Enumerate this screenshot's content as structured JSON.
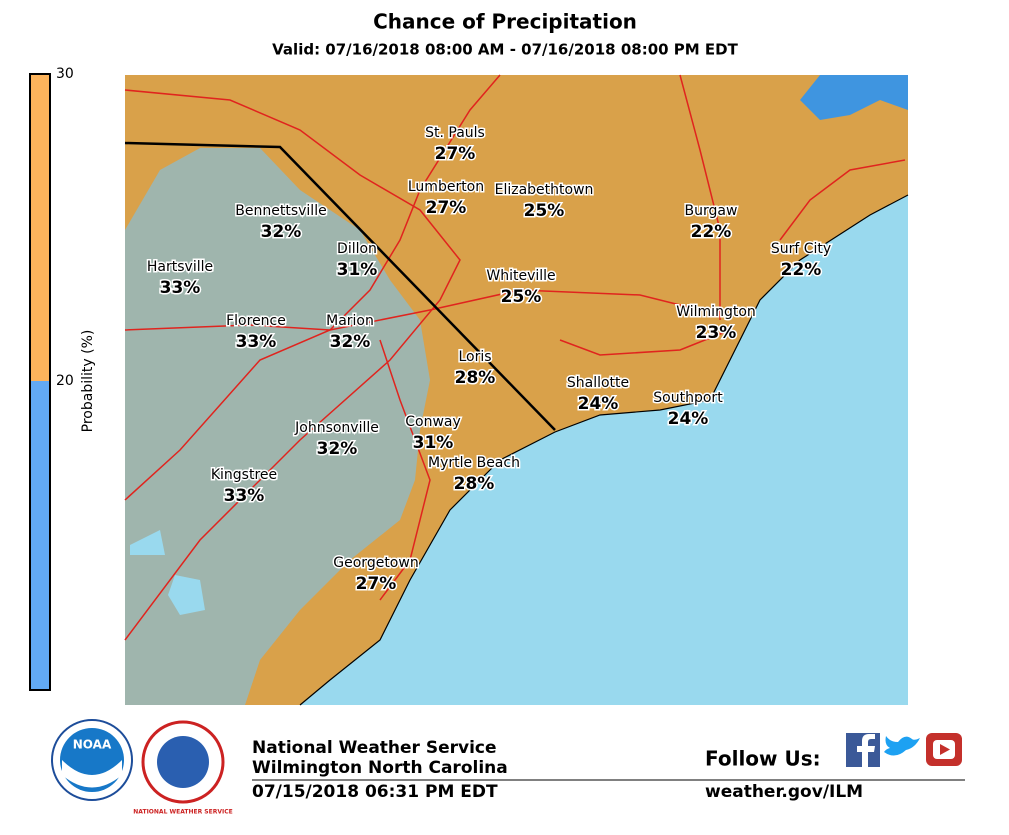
{
  "header": {
    "title": "Chance of Precipitation",
    "valid": "Valid: 07/16/2018 08:00 AM - 07/16/2018 08:00 PM EDT"
  },
  "colorbar": {
    "label": "Probability (%)",
    "ticks": [
      "30",
      "20"
    ]
  },
  "cities": [
    {
      "name": "St. Pauls",
      "value": "27%"
    },
    {
      "name": "Lumberton",
      "value": "27%"
    },
    {
      "name": "Elizabethtown",
      "value": "25%"
    },
    {
      "name": "Bennettsville",
      "value": "32%"
    },
    {
      "name": "Dillon",
      "value": "31%"
    },
    {
      "name": "Burgaw",
      "value": "22%"
    },
    {
      "name": "Surf City",
      "value": "22%"
    },
    {
      "name": "Hartsville",
      "value": "33%"
    },
    {
      "name": "Whiteville",
      "value": "25%"
    },
    {
      "name": "Wilmington",
      "value": "23%"
    },
    {
      "name": "Florence",
      "value": "33%"
    },
    {
      "name": "Marion",
      "value": "32%"
    },
    {
      "name": "Loris",
      "value": "28%"
    },
    {
      "name": "Shallotte",
      "value": "24%"
    },
    {
      "name": "Southport",
      "value": "24%"
    },
    {
      "name": "Conway",
      "value": "31%"
    },
    {
      "name": "Johnsonville",
      "value": "32%"
    },
    {
      "name": "Myrtle Beach",
      "value": "28%"
    },
    {
      "name": "Kingstree",
      "value": "33%"
    },
    {
      "name": "Georgetown",
      "value": "27%"
    }
  ],
  "footer": {
    "logo_noaa": "NOAA",
    "logo_nws": "NATIONAL WEATHER SERVICE",
    "org": "National Weather Service",
    "office": "Wilmington North Carolina",
    "issued": "07/15/2018 06:31 PM EDT",
    "follow": "Follow Us:",
    "url": "weather.gov/ILM"
  }
}
